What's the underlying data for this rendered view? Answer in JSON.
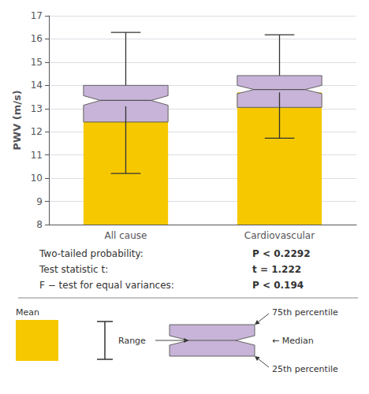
{
  "chart_data": {
    "type": "bar",
    "categories": [
      "All cause",
      "Cardiovascular"
    ],
    "ylabel": "PWV (m/s)",
    "ylim": [
      8,
      17
    ],
    "yticks": [
      8,
      9,
      10,
      11,
      12,
      13,
      14,
      15,
      16,
      17
    ],
    "grid": true,
    "series": [
      {
        "name": "Mean",
        "type": "bar",
        "color": "#F5C800",
        "values": [
          13.1,
          13.7
        ]
      },
      {
        "name": "Range",
        "type": "range",
        "min": [
          10.2,
          11.72
        ],
        "max": [
          16.28,
          16.18
        ]
      },
      {
        "type": "notched_box",
        "color": "#C8B4D8",
        "q1": [
          12.42,
          13.05
        ],
        "median": [
          13.35,
          13.82
        ],
        "q3": [
          14.0,
          14.42
        ],
        "labels": {
          "q3": "75th percentile",
          "median": "← Median",
          "q1": "25th percentile"
        }
      }
    ],
    "annotations": [
      [
        "Two-tailed probability:",
        "P < 0.2292"
      ],
      [
        "Test statistic t:",
        "t = 1.222"
      ],
      [
        "F − test for equal variances:",
        "P < 0.194"
      ]
    ]
  }
}
